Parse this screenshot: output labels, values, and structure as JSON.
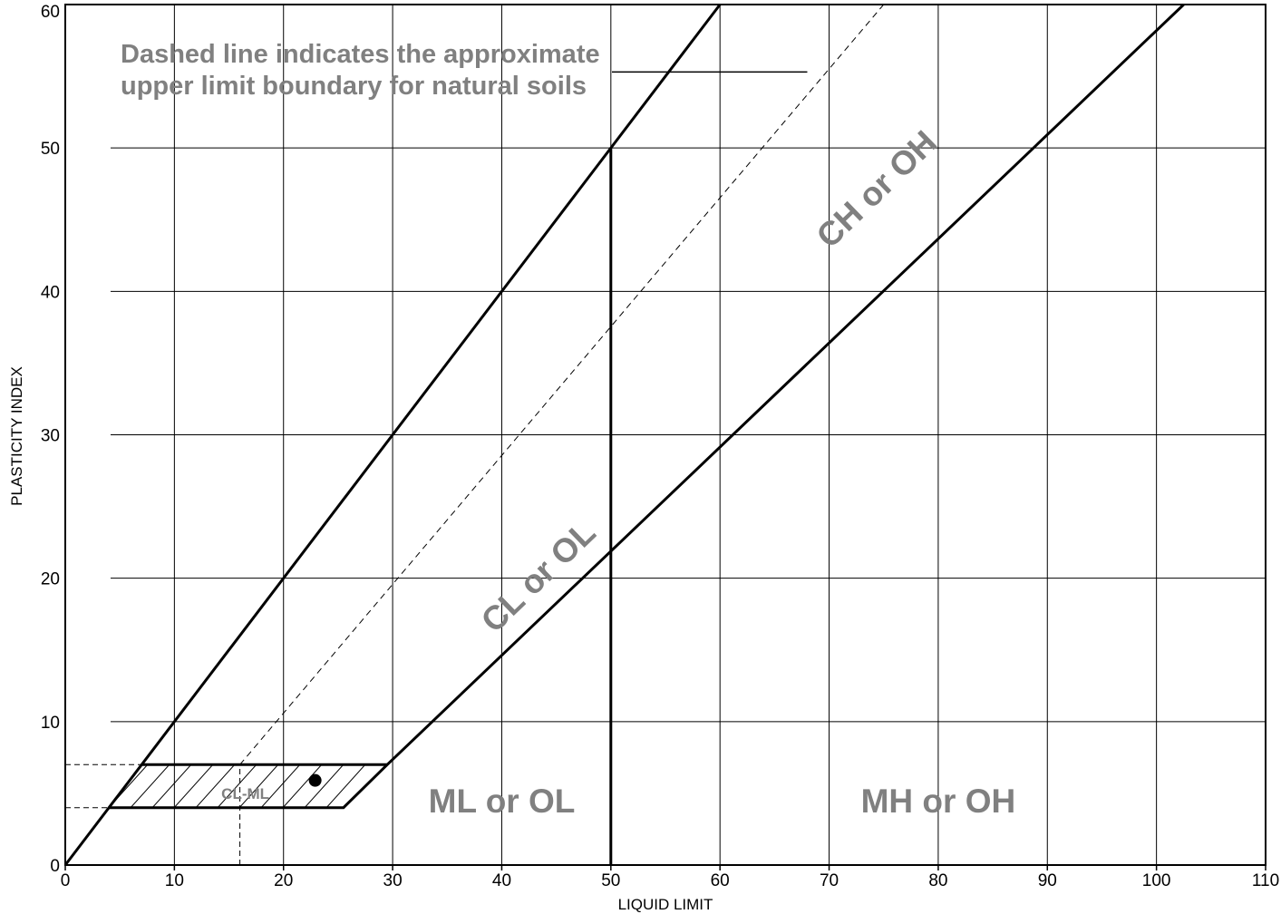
{
  "chart_data": {
    "type": "plasticity-chart",
    "xlabel": "LIQUID LIMIT",
    "ylabel": "PLASTICITY INDEX",
    "xlim": [
      0,
      110
    ],
    "ylim": [
      0,
      60
    ],
    "x_ticks": [
      "0",
      "10",
      "20",
      "30",
      "40",
      "50",
      "60",
      "70",
      "80",
      "90",
      "100",
      "110"
    ],
    "y_ticks": [
      "0",
      "10",
      "20",
      "30",
      "40",
      "50",
      "60"
    ],
    "grid": true,
    "boundary_lines": {
      "u_line": [
        [
          0,
          0
        ],
        [
          60,
          60
        ]
      ],
      "a_line": [
        [
          4,
          4
        ],
        [
          25.5,
          4
        ],
        [
          29.5,
          7
        ],
        [
          102.5,
          60
        ]
      ],
      "ll50_line": [
        [
          50,
          0
        ],
        [
          50,
          50
        ]
      ],
      "upper_limit_dashed": [
        [
          16,
          7
        ],
        [
          75,
          60
        ]
      ],
      "cl_ml_zone": [
        [
          4,
          4
        ],
        [
          25.5,
          4
        ],
        [
          29.5,
          7
        ],
        [
          7,
          7
        ]
      ],
      "ref_dashed_pi7": [
        [
          0,
          7
        ],
        [
          7,
          7
        ]
      ],
      "ref_dashed_pi4": [
        [
          0,
          4
        ],
        [
          4,
          4
        ]
      ],
      "ref_dashed_ll16": [
        [
          16,
          0
        ],
        [
          16,
          7
        ]
      ]
    },
    "zones": [
      {
        "label": "CL or OL",
        "x": 43.5,
        "y": 20
      },
      {
        "label": "CH or OH",
        "x": 74.5,
        "y": 47
      },
      {
        "label": "ML or OL",
        "x": 40,
        "y": 4.3
      },
      {
        "label": "MH or OH",
        "x": 80,
        "y": 4.3
      },
      {
        "label": "CL-ML",
        "x": 16.5,
        "y": 4.9
      }
    ],
    "points": [
      {
        "x": 22.9,
        "y": 5.9
      }
    ],
    "annotation": {
      "lines": [
        "Dashed line indicates the approximate",
        "upper limit boundary for natural soils"
      ],
      "leader_from": [
        50,
        55.3
      ],
      "leader_to": [
        68,
        55.3
      ]
    }
  }
}
